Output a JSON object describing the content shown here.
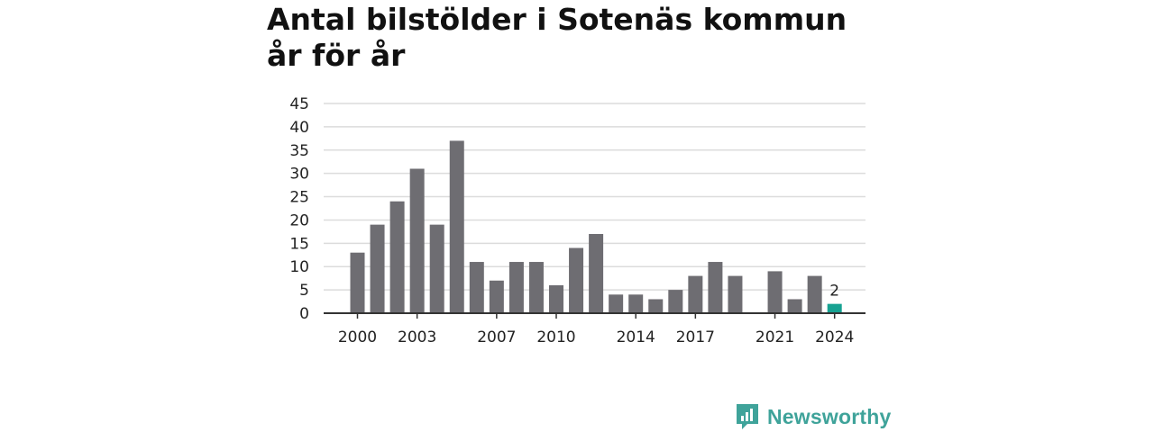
{
  "title": "Antal bilstölder i Sotenäs kommun år för år",
  "brand": {
    "name": "Newsworthy",
    "icon": "newsworthy-logo-icon",
    "color": "#3fa39a"
  },
  "colors": {
    "bar": "#6e6d72",
    "highlight": "#17a292",
    "grid": "#dcdcdc",
    "axis": "#333333"
  },
  "chart_data": {
    "type": "bar",
    "title": "Antal bilstölder i Sotenäs kommun år för år",
    "xlabel": "",
    "ylabel": "",
    "x": [
      2000,
      2001,
      2002,
      2003,
      2004,
      2005,
      2006,
      2007,
      2008,
      2009,
      2010,
      2011,
      2012,
      2013,
      2014,
      2015,
      2016,
      2017,
      2018,
      2019,
      2020,
      2021,
      2022,
      2023,
      2024
    ],
    "values": [
      13,
      19,
      24,
      31,
      19,
      37,
      11,
      7,
      11,
      11,
      6,
      14,
      17,
      4,
      4,
      3,
      5,
      8,
      11,
      8,
      null,
      9,
      3,
      8,
      2
    ],
    "x_tick_labels": [
      "2000",
      "2003",
      "2007",
      "2010",
      "2014",
      "2017",
      "2021",
      "2024"
    ],
    "y_ticks": [
      0,
      5,
      10,
      15,
      20,
      25,
      30,
      35,
      40,
      45
    ],
    "ylim": [
      0,
      45
    ],
    "grid": true,
    "legend": "none",
    "highlight": {
      "x": 2024,
      "label": "2"
    }
  }
}
